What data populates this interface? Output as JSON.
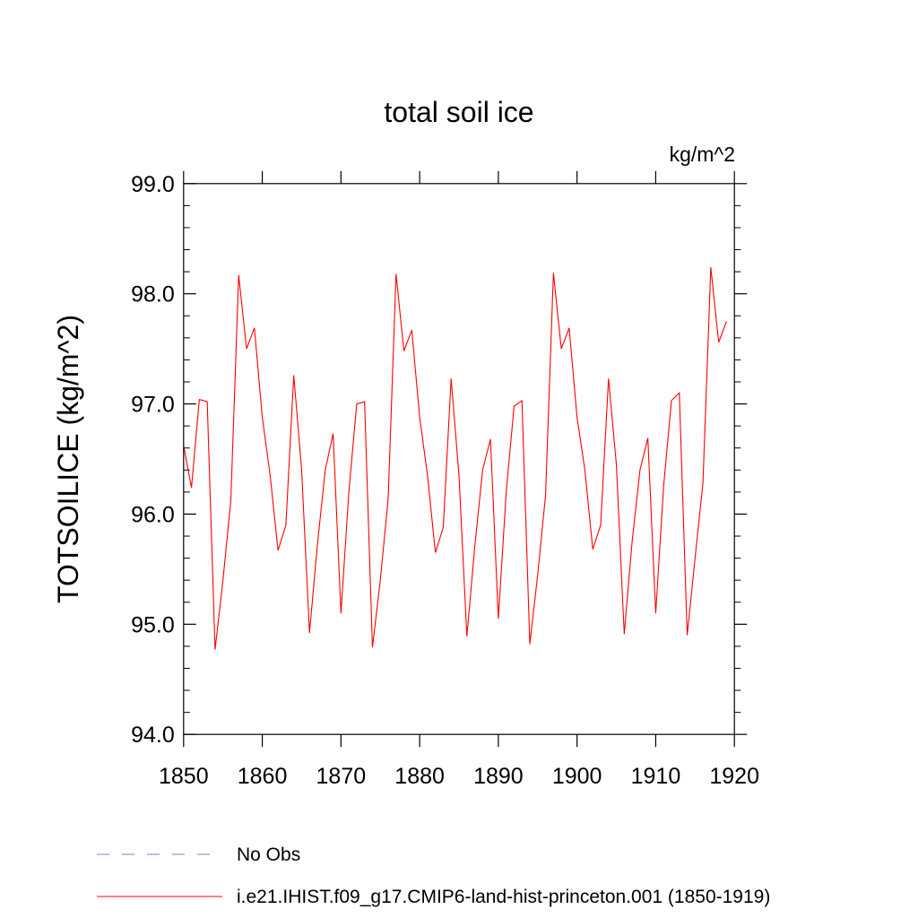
{
  "chart_data": {
    "type": "line",
    "title": "total soil ice",
    "units_label": "kg/m^2",
    "ylabel": "TOTSOILICE  (kg/m^2)",
    "xlabel": "",
    "xlim": [
      1850,
      1920
    ],
    "ylim": [
      94.0,
      99.0
    ],
    "x_ticks": [
      1850,
      1860,
      1870,
      1880,
      1890,
      1900,
      1910,
      1920
    ],
    "x_tick_labels": [
      "1850",
      "1860",
      "1870",
      "1880",
      "1890",
      "1900",
      "1910",
      "1920"
    ],
    "y_ticks": [
      94.0,
      95.0,
      96.0,
      97.0,
      98.0,
      99.0
    ],
    "y_tick_labels": [
      "94.0",
      "95.0",
      "96.0",
      "97.0",
      "98.0",
      "99.0"
    ],
    "grid": false,
    "legend_placement": "bottom-left below plot",
    "series": [
      {
        "name": "No Obs",
        "color": "#8080c0",
        "dash": "dashed",
        "values": []
      },
      {
        "name": "i.e21.IHIST.f09_g17.CMIP6-land-hist-princeton.001 (1850-1919)",
        "color": "#ff0000",
        "dash": "solid",
        "x": [
          1850,
          1851,
          1852,
          1853,
          1854,
          1855,
          1856,
          1857,
          1858,
          1859,
          1860,
          1861,
          1862,
          1863,
          1864,
          1865,
          1866,
          1867,
          1868,
          1869,
          1870,
          1871,
          1872,
          1873,
          1874,
          1875,
          1876,
          1877,
          1878,
          1879,
          1880,
          1881,
          1882,
          1883,
          1884,
          1885,
          1886,
          1887,
          1888,
          1889,
          1890,
          1891,
          1892,
          1893,
          1894,
          1895,
          1896,
          1897,
          1898,
          1899,
          1900,
          1901,
          1902,
          1903,
          1904,
          1905,
          1906,
          1907,
          1908,
          1909,
          1910,
          1911,
          1912,
          1913,
          1914,
          1915,
          1916,
          1917,
          1918,
          1919
        ],
        "values": [
          96.62,
          96.24,
          97.04,
          97.02,
          94.77,
          95.4,
          96.12,
          98.17,
          97.5,
          97.69,
          96.88,
          96.35,
          95.67,
          95.9,
          97.26,
          96.4,
          94.92,
          95.72,
          96.4,
          96.73,
          95.1,
          96.2,
          97.0,
          97.02,
          94.79,
          95.4,
          96.14,
          98.18,
          97.48,
          97.67,
          96.88,
          96.35,
          95.65,
          95.88,
          97.23,
          96.35,
          94.89,
          95.7,
          96.4,
          96.68,
          95.05,
          96.2,
          96.98,
          97.03,
          94.82,
          95.45,
          96.17,
          98.19,
          97.5,
          97.69,
          96.88,
          96.4,
          95.68,
          95.9,
          97.23,
          96.45,
          94.91,
          95.75,
          96.4,
          96.69,
          95.1,
          96.25,
          97.03,
          97.1,
          94.9,
          95.6,
          96.28,
          98.24,
          97.56,
          97.75
        ]
      }
    ]
  }
}
